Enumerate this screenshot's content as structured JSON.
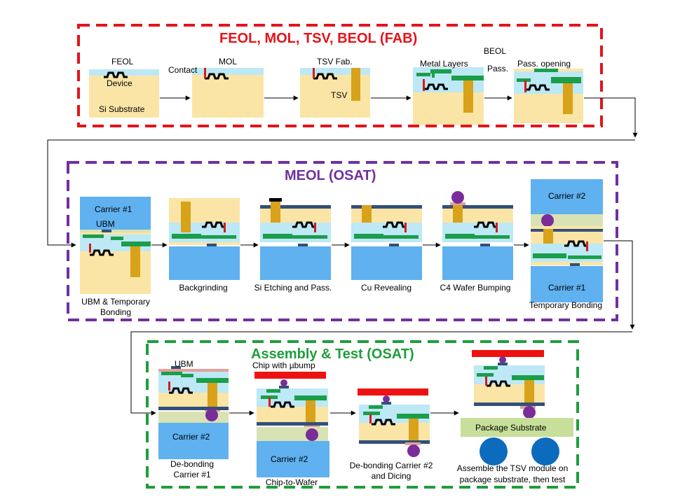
{
  "sections": {
    "fab": {
      "title": "FEOL, MOL, TSV, BEOL (FAB)",
      "color": "#e3141b"
    },
    "meol": {
      "title": "MEOL (OSAT)",
      "color": "#7030a0"
    },
    "assembly": {
      "title": "Assembly & Test (OSAT)",
      "color": "#1e9e3c"
    }
  },
  "fab_labels": {
    "feol": "FEOL",
    "device": "Device",
    "si_substrate": "Si Substrate",
    "contact": "Contact",
    "mol": "MOL",
    "tsv_fab": "TSV Fab.",
    "tsv": "TSV",
    "metal_layers": "Metal Layers",
    "beol": "BEOL",
    "pass": "Pass.",
    "pass_opening": "Pass. opening"
  },
  "meol_labels": {
    "carrier1": "Carrier #1",
    "ubm": "UBM",
    "ubm_bonding_1": "UBM & Temporary",
    "ubm_bonding_2": "Bonding",
    "backgrinding": "Backgrinding",
    "si_etching": "Si Etching and Pass.",
    "cu_revealing": "Cu Revealing",
    "c4_bumping": "C4 Wafer Bumping",
    "carrier2": "Carrier #2",
    "carrier1_b": "Carrier #1",
    "temporary_bonding": "Temporary Bonding"
  },
  "assembly_labels": {
    "ubm": "UBM",
    "carrier2": "Carrier #2",
    "debond1_1": "De-bonding",
    "debond1_2": "Carrier #1",
    "chip_with_ubump": "Chip with µbump",
    "carrier2_b": "Carrier #2",
    "chip_to_wafer": "Chip-to-Wafer",
    "debond2_1": "De-bonding Carrier #2",
    "debond2_2": "and Dicing",
    "package_substrate": "Package Substrate",
    "assemble_1": "Assemble the TSV module on",
    "assemble_2": "package substrate, then test"
  },
  "colors": {
    "silicon": "#fbe5a6",
    "carrier": "#5fb1f0",
    "dielectric": "#bde8f5",
    "copper": "#d8a21a",
    "metal": "#1a9e4a",
    "contact": "#d41b1b",
    "bump": "#7a2d99",
    "ubm": "#e3a19a",
    "adhesive": "#d9e2b4",
    "passivation": "#34507a",
    "package": "#c7df9a",
    "ball": "#0c6bbd",
    "chip_bar": "#ee1111"
  }
}
